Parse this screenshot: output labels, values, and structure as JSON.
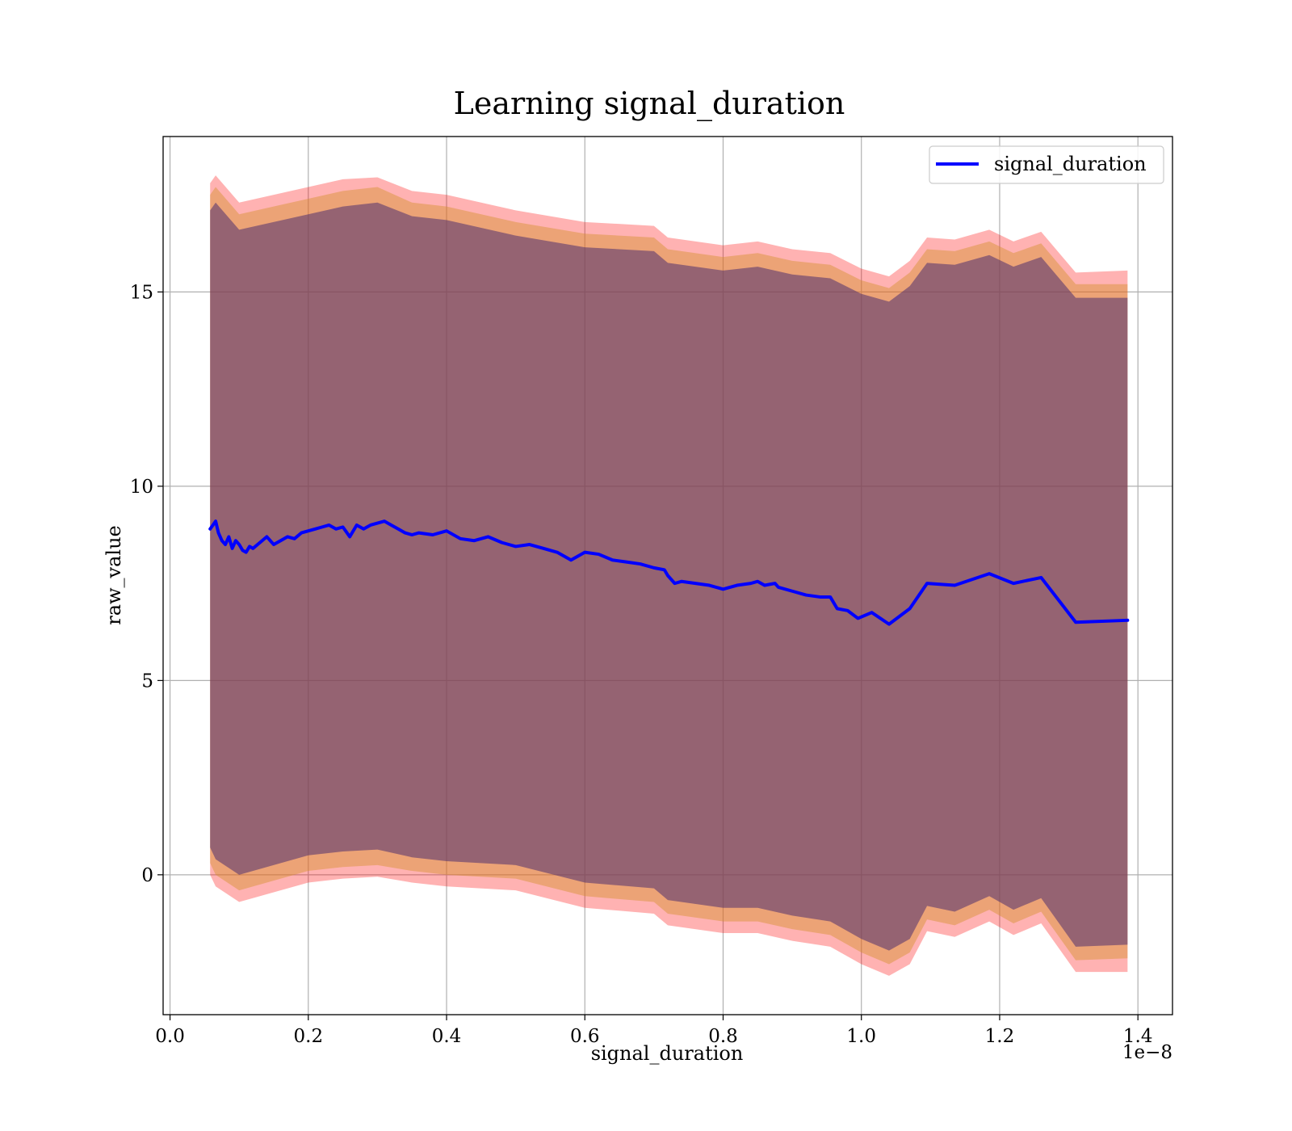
{
  "chart_data": {
    "type": "line",
    "title": "Learning signal_duration",
    "xlabel": "signal_duration",
    "ylabel": "raw_value",
    "x_offset_label": "1e−8",
    "xlim": [
      -0.01,
      1.45
    ],
    "ylim": [
      -3.6,
      19.0
    ],
    "grid": true,
    "legend_placement": "upper-right",
    "xticks": [
      0.0,
      0.2,
      0.4,
      0.6,
      0.8,
      1.0,
      1.2,
      1.4
    ],
    "xtick_labels": [
      "0.0",
      "0.2",
      "0.4",
      "0.6",
      "0.8",
      "1.0",
      "1.2",
      "1.4"
    ],
    "yticks": [
      0,
      5,
      10,
      15
    ],
    "ytick_labels": [
      "0",
      "5",
      "10",
      "15"
    ],
    "series": [
      {
        "name": "signal_duration",
        "color": "#0000ff",
        "x": [
          0.058,
          0.062,
          0.066,
          0.07,
          0.075,
          0.08,
          0.085,
          0.09,
          0.095,
          0.1,
          0.105,
          0.11,
          0.115,
          0.12,
          0.13,
          0.14,
          0.15,
          0.16,
          0.17,
          0.18,
          0.19,
          0.2,
          0.21,
          0.22,
          0.23,
          0.24,
          0.25,
          0.26,
          0.27,
          0.28,
          0.29,
          0.3,
          0.31,
          0.32,
          0.33,
          0.34,
          0.35,
          0.36,
          0.38,
          0.4,
          0.42,
          0.44,
          0.46,
          0.48,
          0.5,
          0.52,
          0.54,
          0.56,
          0.58,
          0.6,
          0.62,
          0.64,
          0.66,
          0.68,
          0.7,
          0.715,
          0.72,
          0.73,
          0.74,
          0.76,
          0.78,
          0.8,
          0.81,
          0.82,
          0.84,
          0.85,
          0.86,
          0.875,
          0.88,
          0.9,
          0.92,
          0.94,
          0.955,
          0.965,
          0.98,
          0.995,
          1.015,
          1.04,
          1.055,
          1.07,
          1.095,
          1.135,
          1.185,
          1.22,
          1.26,
          1.31,
          1.385
        ],
        "values": [
          8.9,
          9.0,
          9.1,
          8.8,
          8.6,
          8.5,
          8.7,
          8.4,
          8.6,
          8.5,
          8.35,
          8.3,
          8.45,
          8.4,
          8.55,
          8.7,
          8.5,
          8.6,
          8.7,
          8.65,
          8.8,
          8.85,
          8.9,
          8.95,
          9.0,
          8.9,
          8.95,
          8.7,
          9.0,
          8.9,
          9.0,
          9.05,
          9.1,
          9.0,
          8.9,
          8.8,
          8.75,
          8.8,
          8.75,
          8.85,
          8.65,
          8.6,
          8.7,
          8.55,
          8.45,
          8.5,
          8.4,
          8.3,
          8.1,
          8.3,
          8.25,
          8.1,
          8.05,
          8.0,
          7.9,
          7.85,
          7.7,
          7.5,
          7.55,
          7.5,
          7.45,
          7.35,
          7.4,
          7.45,
          7.5,
          7.55,
          7.45,
          7.5,
          7.4,
          7.3,
          7.2,
          7.15,
          7.15,
          6.85,
          6.8,
          6.6,
          6.75,
          6.45,
          6.65,
          6.85,
          7.5,
          7.45,
          7.75,
          7.5,
          7.65,
          6.5,
          6.55
        ]
      }
    ],
    "bands": [
      {
        "color": "#ff0000",
        "opacity": 0.3,
        "x": [
          0.058,
          0.066,
          0.1,
          0.2,
          0.25,
          0.3,
          0.35,
          0.4,
          0.5,
          0.6,
          0.7,
          0.72,
          0.8,
          0.85,
          0.9,
          0.955,
          1.0,
          1.04,
          1.07,
          1.095,
          1.135,
          1.185,
          1.22,
          1.26,
          1.31,
          1.385
        ],
        "upper": [
          17.8,
          18.0,
          17.3,
          17.7,
          17.9,
          17.95,
          17.6,
          17.5,
          17.1,
          16.8,
          16.7,
          16.4,
          16.2,
          16.3,
          16.1,
          16.0,
          15.6,
          15.4,
          15.8,
          16.4,
          16.35,
          16.6,
          16.3,
          16.55,
          15.5,
          15.55
        ],
        "lower": [
          0.0,
          -0.3,
          -0.7,
          -0.2,
          -0.1,
          -0.05,
          -0.2,
          -0.3,
          -0.4,
          -0.85,
          -1.0,
          -1.3,
          -1.5,
          -1.5,
          -1.7,
          -1.85,
          -2.3,
          -2.6,
          -2.3,
          -1.45,
          -1.6,
          -1.2,
          -1.55,
          -1.25,
          -2.5,
          -2.5
        ]
      },
      {
        "color": "#d4902c",
        "opacity": 0.45,
        "x": [
          0.058,
          0.066,
          0.1,
          0.2,
          0.25,
          0.3,
          0.35,
          0.4,
          0.5,
          0.6,
          0.7,
          0.72,
          0.8,
          0.85,
          0.9,
          0.955,
          1.0,
          1.04,
          1.07,
          1.095,
          1.135,
          1.185,
          1.22,
          1.26,
          1.31,
          1.385
        ],
        "upper": [
          17.5,
          17.7,
          17.0,
          17.4,
          17.6,
          17.7,
          17.3,
          17.2,
          16.8,
          16.5,
          16.4,
          16.1,
          15.9,
          16.0,
          15.8,
          15.7,
          15.3,
          15.1,
          15.5,
          16.1,
          16.05,
          16.3,
          16.0,
          16.25,
          15.2,
          15.2
        ],
        "lower": [
          0.3,
          0.0,
          -0.4,
          0.1,
          0.2,
          0.25,
          0.1,
          0.0,
          -0.1,
          -0.55,
          -0.7,
          -1.0,
          -1.2,
          -1.2,
          -1.4,
          -1.55,
          -2.0,
          -2.3,
          -2.0,
          -1.15,
          -1.3,
          -0.9,
          -1.25,
          -0.95,
          -2.2,
          -2.15
        ]
      },
      {
        "color": "#4f2f6f",
        "opacity": 0.55,
        "x": [
          0.058,
          0.066,
          0.1,
          0.2,
          0.25,
          0.3,
          0.35,
          0.4,
          0.5,
          0.6,
          0.7,
          0.72,
          0.8,
          0.85,
          0.9,
          0.955,
          1.0,
          1.04,
          1.07,
          1.095,
          1.135,
          1.185,
          1.22,
          1.26,
          1.31,
          1.385
        ],
        "upper": [
          17.1,
          17.3,
          16.6,
          17.0,
          17.2,
          17.3,
          16.95,
          16.85,
          16.45,
          16.15,
          16.05,
          15.75,
          15.55,
          15.65,
          15.45,
          15.35,
          14.95,
          14.75,
          15.15,
          15.75,
          15.7,
          15.95,
          15.65,
          15.9,
          14.85,
          14.85
        ],
        "lower": [
          0.7,
          0.4,
          0.0,
          0.5,
          0.6,
          0.65,
          0.45,
          0.35,
          0.25,
          -0.2,
          -0.35,
          -0.65,
          -0.85,
          -0.85,
          -1.05,
          -1.2,
          -1.65,
          -1.95,
          -1.65,
          -0.8,
          -0.95,
          -0.55,
          -0.9,
          -0.6,
          -1.85,
          -1.8
        ]
      }
    ]
  }
}
